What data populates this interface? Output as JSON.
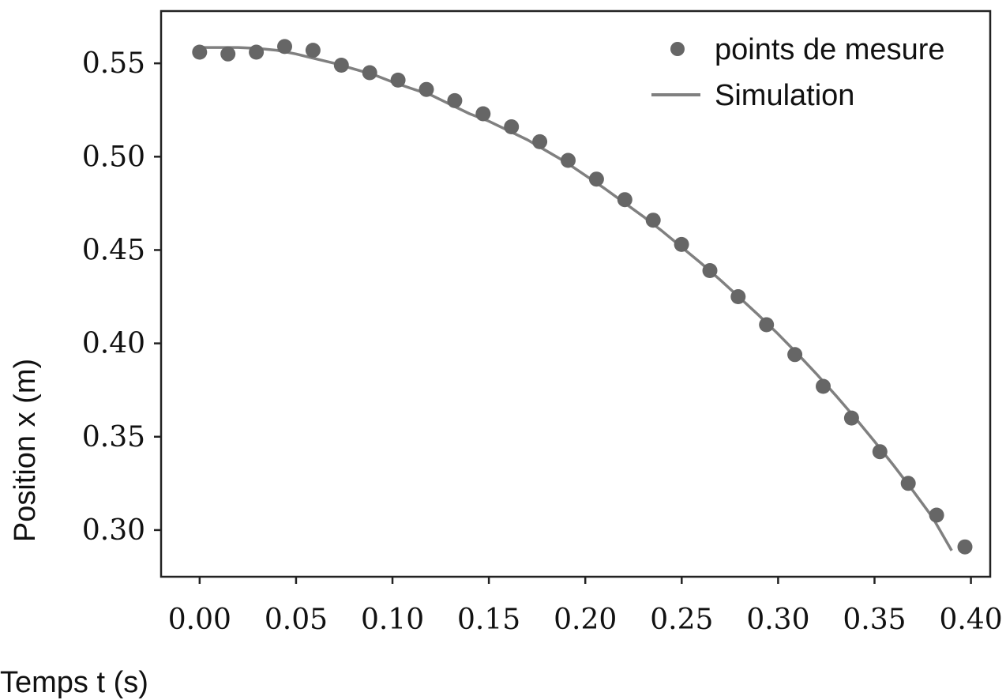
{
  "chart_data": {
    "type": "scatter",
    "xlabel": "Temps t (s)",
    "ylabel": "Position x (m)",
    "xlim": [
      -0.02,
      0.41
    ],
    "ylim": [
      0.275,
      0.578
    ],
    "xticks": [
      "0.00",
      "0.05",
      "0.10",
      "0.15",
      "0.20",
      "0.25",
      "0.30",
      "0.35",
      "0.40"
    ],
    "yticks": [
      "0.30",
      "0.35",
      "0.40",
      "0.45",
      "0.50",
      "0.55"
    ],
    "grid": false,
    "legend_position": "top-right",
    "colors": {
      "points": "#666666",
      "line": "#808080",
      "axes": "#222222"
    },
    "series": [
      {
        "name": "points de mesure",
        "kind": "scatter",
        "x": [
          0.0,
          0.0147,
          0.0294,
          0.0441,
          0.0588,
          0.0735,
          0.0882,
          0.1029,
          0.1176,
          0.1323,
          0.147,
          0.1617,
          0.1764,
          0.1911,
          0.2058,
          0.2205,
          0.2352,
          0.2499,
          0.2646,
          0.2793,
          0.294,
          0.3087,
          0.3234,
          0.3381,
          0.3528,
          0.3675,
          0.3822,
          0.3969
        ],
        "y": [
          0.556,
          0.555,
          0.556,
          0.559,
          0.557,
          0.549,
          0.545,
          0.541,
          0.536,
          0.53,
          0.523,
          0.516,
          0.508,
          0.498,
          0.488,
          0.477,
          0.466,
          0.453,
          0.439,
          0.425,
          0.41,
          0.394,
          0.377,
          0.36,
          0.342,
          0.325,
          0.308,
          0.291
        ]
      },
      {
        "name": "Simulation",
        "kind": "line",
        "x": [
          0.0,
          0.01,
          0.02,
          0.03,
          0.04,
          0.05,
          0.06,
          0.07,
          0.08,
          0.09,
          0.1,
          0.11,
          0.12,
          0.13,
          0.14,
          0.15,
          0.16,
          0.17,
          0.18,
          0.19,
          0.2,
          0.21,
          0.22,
          0.23,
          0.24,
          0.25,
          0.26,
          0.27,
          0.28,
          0.29,
          0.3,
          0.31,
          0.32,
          0.33,
          0.34,
          0.35,
          0.36,
          0.37,
          0.38,
          0.39
        ],
        "y": [
          0.5585,
          0.5585,
          0.5585,
          0.558,
          0.557,
          0.555,
          0.5525,
          0.55,
          0.547,
          0.544,
          0.54,
          0.5365,
          0.533,
          0.528,
          0.523,
          0.519,
          0.514,
          0.509,
          0.503,
          0.497,
          0.49,
          0.483,
          0.4755,
          0.468,
          0.46,
          0.4515,
          0.443,
          0.434,
          0.4245,
          0.415,
          0.405,
          0.3945,
          0.3835,
          0.372,
          0.36,
          0.3475,
          0.3345,
          0.321,
          0.307,
          0.289
        ]
      }
    ]
  }
}
